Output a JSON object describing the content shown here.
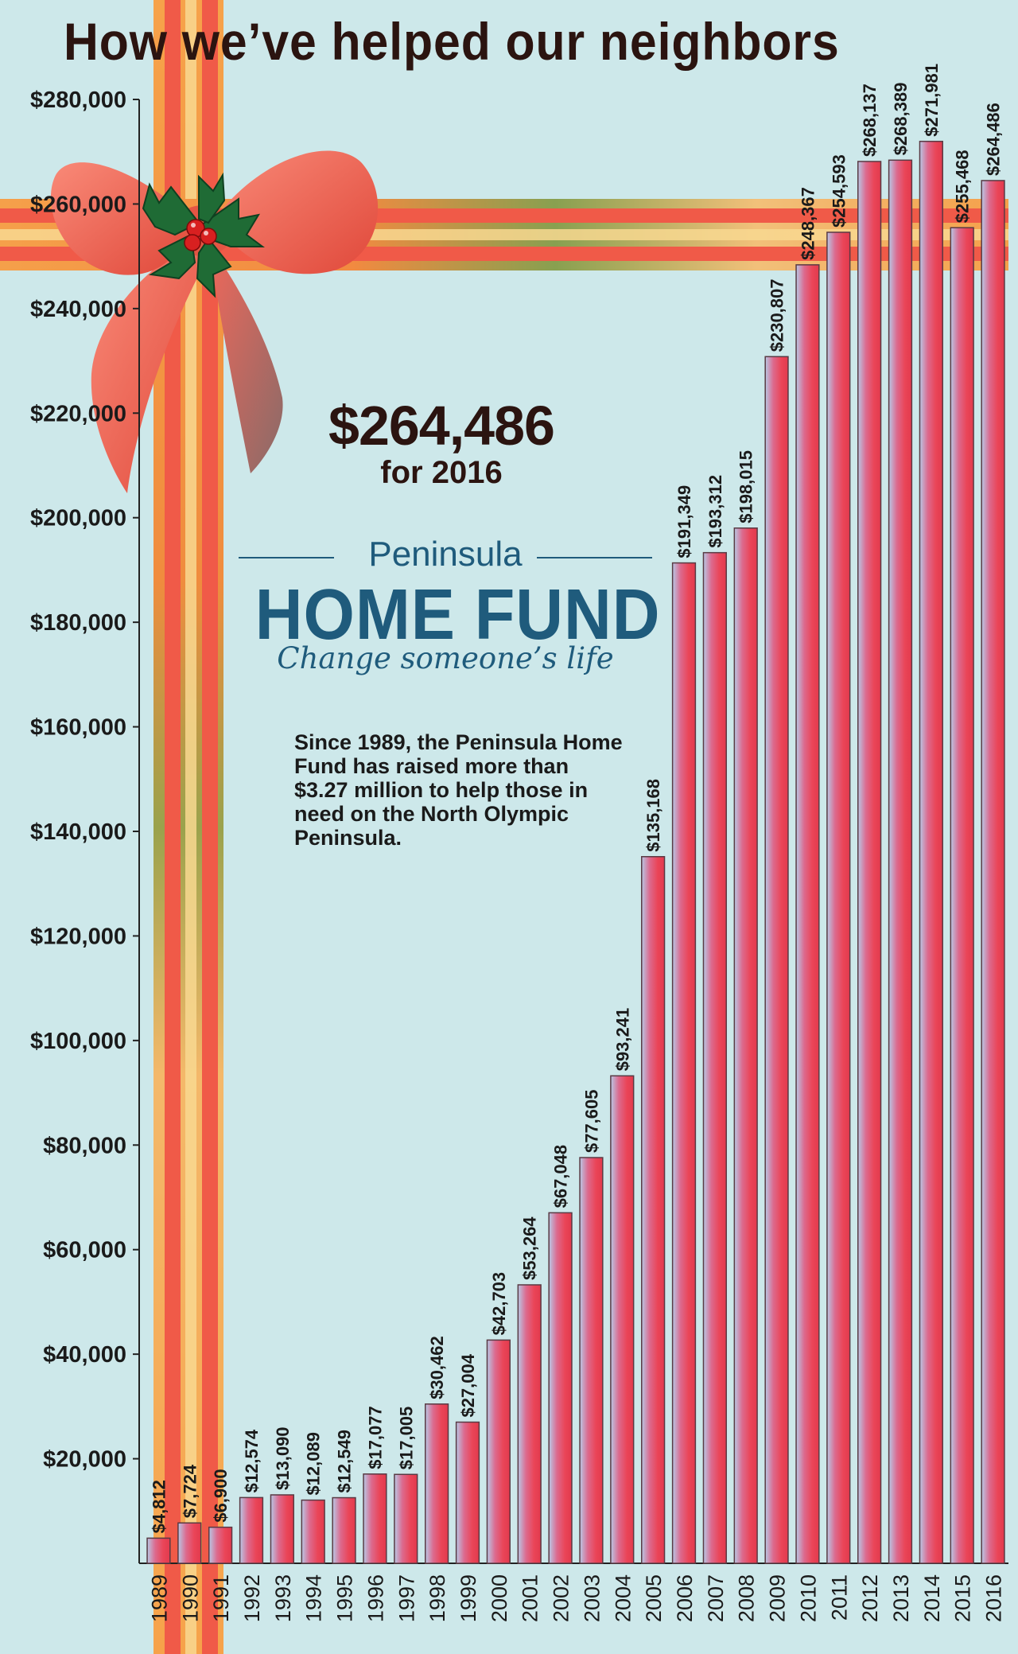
{
  "chart_data": {
    "type": "bar",
    "title": "How we’ve helped our neighbors",
    "xlabel": "",
    "ylabel": "",
    "ylim": [
      0,
      280000
    ],
    "yticks": [
      20000,
      40000,
      60000,
      80000,
      100000,
      120000,
      140000,
      160000,
      180000,
      200000,
      220000,
      240000,
      260000,
      280000
    ],
    "ytick_labels": [
      "$20,000",
      "$40,000",
      "$60,000",
      "$80,000",
      "$100,000",
      "$120,000",
      "$140,000",
      "$160,000",
      "$180,000",
      "$200,000",
      "$220,000",
      "$240,000",
      "$260,000",
      "$280,000"
    ],
    "categories": [
      "1989",
      "1990",
      "1991",
      "1992",
      "1993",
      "1994",
      "1995",
      "1996",
      "1997",
      "1998",
      "1999",
      "2000",
      "2001",
      "2002",
      "2003",
      "2004",
      "2005",
      "2006",
      "2007",
      "2008",
      "2009",
      "2010",
      "2011",
      "2012",
      "2013",
      "2014",
      "2015",
      "2016"
    ],
    "values": [
      4812,
      7724,
      6900,
      12574,
      13090,
      12089,
      12549,
      17077,
      17005,
      30462,
      27004,
      42703,
      53264,
      67048,
      77605,
      93241,
      135168,
      191349,
      193312,
      198015,
      230807,
      248367,
      254593,
      268137,
      268389,
      271981,
      255468,
      264486
    ],
    "value_labels": [
      "$4,812",
      "$7,724",
      "$6,900",
      "$12,574",
      "$13,090",
      "$12,089",
      "$12,549",
      "$17,077",
      "$17,005",
      "$30,462",
      "$27,004",
      "$42,703",
      "$53,264",
      "$67,048",
      "$77,605",
      "$93,241",
      "$135,168",
      "$191,349",
      "$193,312",
      "$198,015",
      "$230,807",
      "$248,367",
      "$254,593",
      "$268,137",
      "$268,389",
      "$271,981",
      "$255,468",
      "$264,486"
    ],
    "grid": false,
    "legend": "none"
  },
  "headline": {
    "amount": "$264,486",
    "subtitle": "for 2016"
  },
  "logo": {
    "name_top": "Peninsula",
    "name_main": "HOME FUND",
    "tagline": "Change someone’s life"
  },
  "blurb": "Since 1989, the Peninsula Home Fund has raised more than $3.27 million to help those in need on the North Olympic Peninsula.",
  "colors": {
    "background": "#cde8ea",
    "bar_red": "#e8475a",
    "bar_blue": "#b8c8e6",
    "ribbon_red": "#f05a48",
    "ribbon_orange": "#f6a04a",
    "ribbon_gold": "#f8e09a",
    "holly_green": "#1f6b35",
    "berry": "#d82020",
    "logo_blue": "#1f5b7c",
    "text_dark": "#2b1410"
  }
}
